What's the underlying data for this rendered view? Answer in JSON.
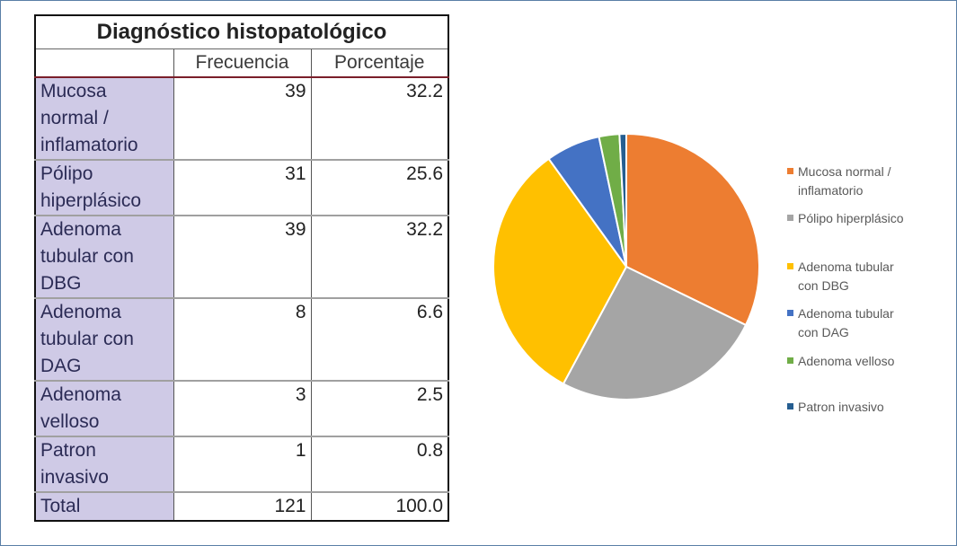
{
  "table": {
    "title": "Diagnóstico histopatológico",
    "headers": [
      "Frecuencia",
      "Porcentaje"
    ],
    "rows": [
      {
        "label": "Mucosa normal / inflamatorio",
        "label_lines": [
          "Mucosa",
          "normal /",
          "inflamatorio"
        ],
        "frecuencia": "39",
        "porcentaje": "32.2"
      },
      {
        "label": "Pólipo hiperplásico",
        "label_lines": [
          "Pólipo",
          "hiperplásico"
        ],
        "frecuencia": "31",
        "porcentaje": "25.6"
      },
      {
        "label": "Adenoma tubular con DBG",
        "label_lines": [
          "Adenoma",
          "tubular con",
          "DBG"
        ],
        "frecuencia": "39",
        "porcentaje": "32.2"
      },
      {
        "label": "Adenoma tubular con DAG",
        "label_lines": [
          "Adenoma",
          "tubular con",
          "DAG"
        ],
        "frecuencia": "8",
        "porcentaje": "6.6"
      },
      {
        "label": "Adenoma velloso",
        "label_lines": [
          "Adenoma",
          "velloso"
        ],
        "frecuencia": "3",
        "porcentaje": "2.5"
      },
      {
        "label": "Patron invasivo",
        "label_lines": [
          "Patron",
          "invasivo"
        ],
        "frecuencia": "1",
        "porcentaje": "0.8"
      }
    ],
    "total": {
      "label": "Total",
      "frecuencia": "121",
      "porcentaje": "100.0"
    }
  },
  "chart_data": {
    "type": "pie",
    "categories": [
      "Mucosa normal / inflamatorio",
      "Pólipo hiperplásico",
      "Adenoma tubular con DBG",
      "Adenoma tubular con DAG",
      "Adenoma velloso",
      "Patron invasivo"
    ],
    "values": [
      39,
      31,
      39,
      8,
      3,
      1
    ],
    "colors": [
      "#ed7d31",
      "#a5a5a5",
      "#ffc000",
      "#4472c4",
      "#70ad47",
      "#255e91"
    ],
    "legend_position": "right",
    "legend": [
      {
        "lines": [
          "Mucosa normal /",
          "inflamatorio"
        ],
        "color": "#ed7d31"
      },
      {
        "lines": [
          "Pólipo hiperplásico"
        ],
        "color": "#a5a5a5"
      },
      {
        "lines": [
          "Adenoma tubular",
          "con DBG"
        ],
        "color": "#ffc000"
      },
      {
        "lines": [
          "Adenoma tubular",
          "con DAG"
        ],
        "color": "#4472c4"
      },
      {
        "lines": [
          "Adenoma velloso"
        ],
        "color": "#70ad47"
      },
      {
        "lines": [
          "Patron invasivo"
        ],
        "color": "#255e91"
      }
    ]
  }
}
